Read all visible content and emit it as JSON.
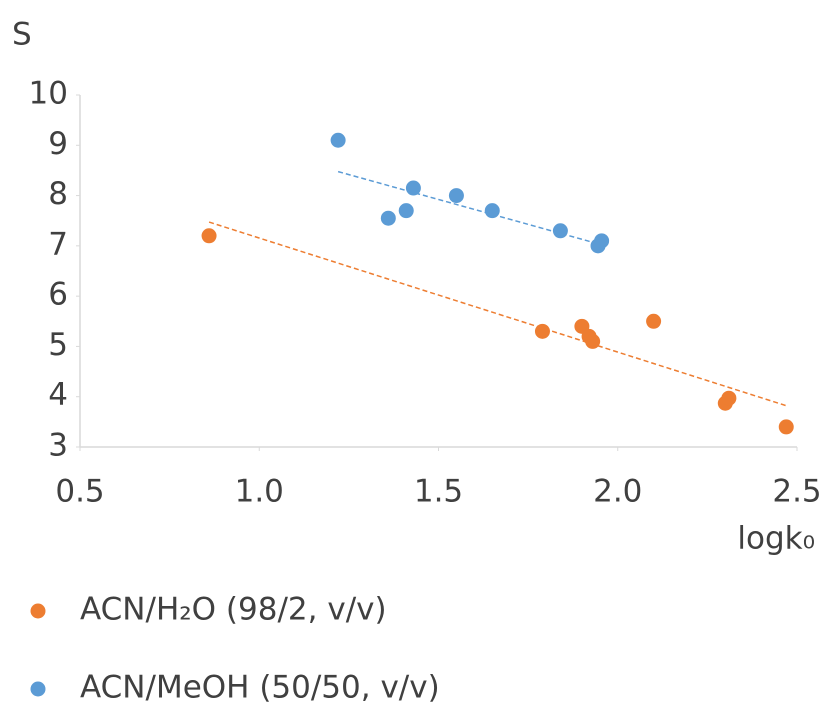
{
  "chart_data": {
    "type": "scatter",
    "y_label": "S",
    "x_label": "logk₀",
    "xlim": [
      0.5,
      2.5
    ],
    "xticks": [
      0.5,
      {
        "value": 1,
        "label": "1.0"
      },
      1.5,
      {
        "value": 2,
        "label": "2.0"
      },
      2.5
    ],
    "ylim": [
      3,
      10
    ],
    "yticks": [
      3,
      4,
      5,
      6,
      7,
      8,
      9,
      10
    ],
    "grid": false,
    "trendline": "linear",
    "series": [
      {
        "name": "ACN/H₂O (98/2, v/v)",
        "color": "#ed7d31",
        "x": [
          0.86,
          1.79,
          1.9,
          1.92,
          1.93,
          2.1,
          2.3,
          2.31,
          2.47
        ],
        "values": [
          7.2,
          5.3,
          5.4,
          5.2,
          5.1,
          5.5,
          3.87,
          3.97,
          3.4
        ]
      },
      {
        "name": "ACN/MeOH (50/50, v/v)",
        "color": "#5b9bd5",
        "x": [
          1.22,
          1.36,
          1.41,
          1.43,
          1.55,
          1.65,
          1.84,
          1.945,
          1.955
        ],
        "values": [
          9.1,
          7.55,
          7.7,
          8.15,
          8.0,
          7.7,
          7.3,
          7.0,
          7.1
        ]
      }
    ]
  }
}
